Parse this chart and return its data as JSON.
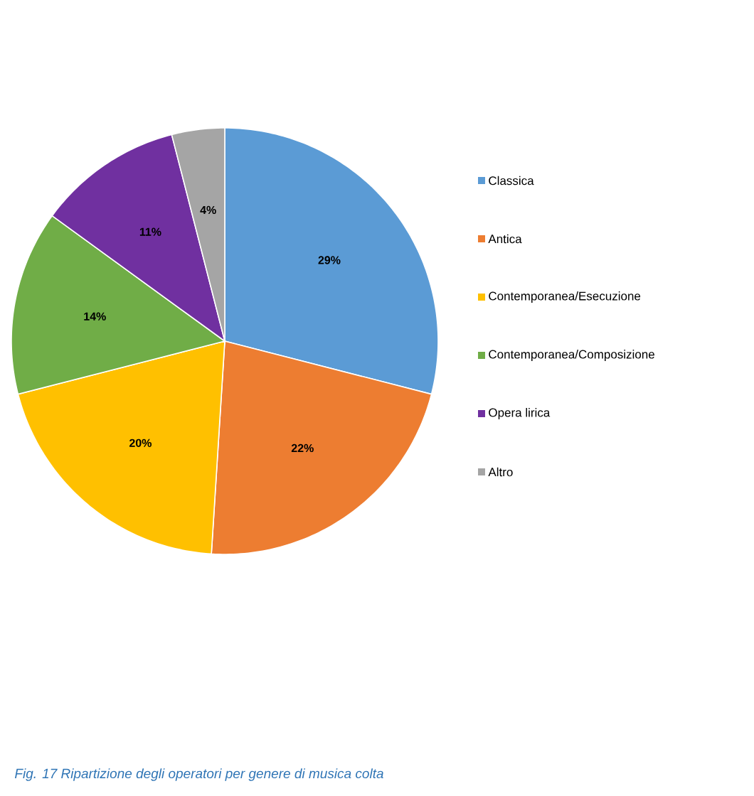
{
  "chart_data": {
    "type": "pie",
    "categories": [
      "Classica",
      "Antica",
      "Contemporanea/Esecuzione",
      "Contemporanea/Composizione",
      "Opera lirica",
      "Altro"
    ],
    "values": [
      29,
      22,
      20,
      14,
      11,
      4
    ],
    "colors": [
      "#5b9bd5",
      "#ed7d31",
      "#ffc000",
      "#70ad47",
      "#7030a0",
      "#a5a5a5"
    ],
    "value_labels": [
      "29%",
      "22%",
      "20%",
      "14%",
      "11%",
      "4%"
    ],
    "legend": "right",
    "annotations": [
      "Fig. 17 Ripartizione degli operatori per genere di musica colta"
    ]
  }
}
